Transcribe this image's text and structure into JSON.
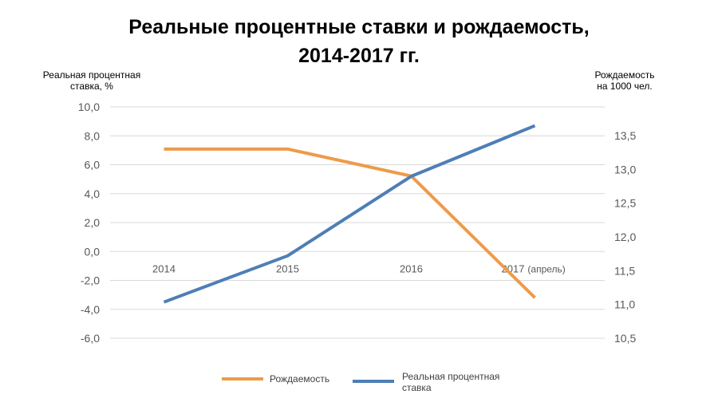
{
  "chart_data": {
    "type": "line",
    "title_line1": "Реальные процентные ставки и рождаемость,",
    "title_line2": "2014-2017 гг.",
    "ylabel_left_line1": "Реальная процентная",
    "ylabel_left_line2": "ставка, %",
    "ylabel_right_line1": "Рождаемость",
    "ylabel_right_line2": "на 1000 чел.",
    "categories": [
      "2014",
      "2015",
      "2016",
      "2017"
    ],
    "last_category_note": "(апрель)",
    "ylim_left": [
      -6,
      10
    ],
    "yticks_left": [
      "10,0",
      "8,0",
      "6,0",
      "4,0",
      "2,0",
      "0,0",
      "-2,0",
      "-4,0",
      "-6,0"
    ],
    "ylim_right": [
      10.5,
      13.5
    ],
    "yticks_right": [
      "13,5",
      "13,0",
      "12,5",
      "12,0",
      "11,5",
      "11,0",
      "10,5"
    ],
    "grid": true,
    "legend_position": "bottom",
    "series": [
      {
        "name": "Рождаемость",
        "axis": "right",
        "color": "#ED9B4A",
        "values": [
          13.3,
          13.3,
          12.9,
          11.1
        ]
      },
      {
        "name": "Реальная процентная ставка",
        "name_line1": "Реальная процентная",
        "name_line2": "ставка",
        "axis": "left",
        "color": "#4E7FB5",
        "values": [
          -3.5,
          -0.3,
          5.2,
          8.7
        ]
      }
    ]
  }
}
